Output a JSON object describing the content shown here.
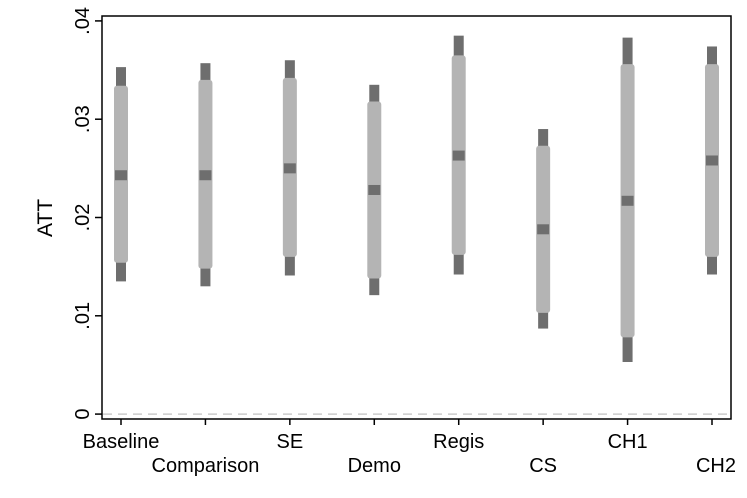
{
  "chart_data": {
    "type": "range-plot",
    "ylabel": "ATT",
    "xlabel": "",
    "ylim": [
      -0.0005,
      0.0405
    ],
    "yticks": [
      0,
      0.01,
      0.02,
      0.03,
      0.04
    ],
    "ytick_labels": [
      "0",
      ".01",
      ".02",
      ".03",
      ".04"
    ],
    "reference_line": {
      "y": 0,
      "style": "dashed",
      "color": "#cccccc"
    },
    "colors": {
      "outer_interval": "#6e6e6e",
      "inner_interval": "#b4b4b4",
      "point": "#6e6e6e"
    },
    "grid": false,
    "legend": "none",
    "categories": [
      "Baseline",
      "Comparison",
      "SE",
      "Demo",
      "Regis",
      "CS",
      "CH1",
      "CH2"
    ],
    "label_row": [
      0,
      1,
      0,
      1,
      0,
      1,
      0,
      1
    ],
    "estimates": [
      {
        "name": "Baseline",
        "point": 0.0243,
        "inner": [
          0.0154,
          0.0334
        ],
        "outer": [
          0.0135,
          0.0353
        ]
      },
      {
        "name": "Comparison",
        "point": 0.0243,
        "inner": [
          0.0148,
          0.034
        ],
        "outer": [
          0.013,
          0.0357
        ]
      },
      {
        "name": "SE",
        "point": 0.025,
        "inner": [
          0.016,
          0.0342
        ],
        "outer": [
          0.0141,
          0.036
        ]
      },
      {
        "name": "Demo",
        "point": 0.0228,
        "inner": [
          0.0138,
          0.0318
        ],
        "outer": [
          0.0121,
          0.0335
        ]
      },
      {
        "name": "Regis",
        "point": 0.0263,
        "inner": [
          0.0162,
          0.0365
        ],
        "outer": [
          0.0142,
          0.0385
        ]
      },
      {
        "name": "CS",
        "point": 0.0188,
        "inner": [
          0.0103,
          0.0273
        ],
        "outer": [
          0.0087,
          0.029
        ]
      },
      {
        "name": "CH1",
        "point": 0.0217,
        "inner": [
          0.0078,
          0.0356
        ],
        "outer": [
          0.0053,
          0.0383
        ]
      },
      {
        "name": "CH2",
        "point": 0.0258,
        "inner": [
          0.016,
          0.0356
        ],
        "outer": [
          0.0142,
          0.0374
        ]
      }
    ]
  }
}
